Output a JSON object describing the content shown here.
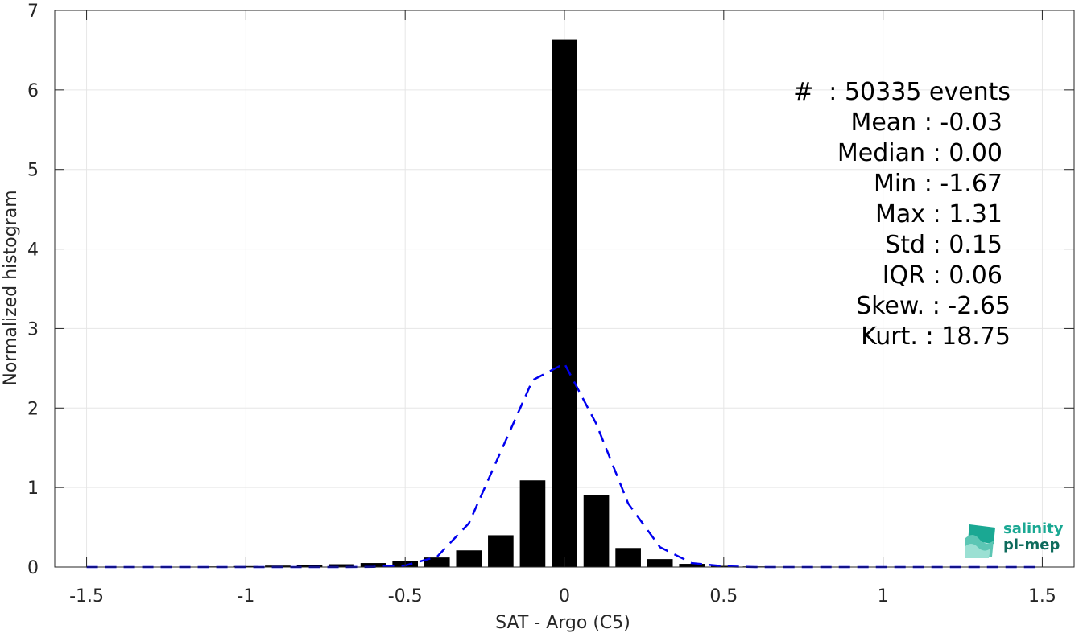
{
  "chart_data": {
    "type": "bar",
    "xlabel": "SAT - Argo (C5)",
    "ylabel": "Normalized histogram",
    "xlim": [
      -1.6,
      1.6
    ],
    "ylim": [
      0,
      7
    ],
    "xticks": [
      -1.5,
      -1,
      -0.5,
      0,
      0.5,
      1,
      1.5
    ],
    "xtick_labels": [
      "-1.5",
      "-1",
      "-0.5",
      "0",
      "0.5",
      "1",
      "1.5"
    ],
    "yticks": [
      0,
      1,
      2,
      3,
      4,
      5,
      6,
      7
    ],
    "ytick_labels": [
      "0",
      "1",
      "2",
      "3",
      "4",
      "5",
      "6",
      "7"
    ],
    "grid": true,
    "bars": {
      "x": [
        -1.5,
        -1.4,
        -1.3,
        -1.2,
        -1.1,
        -1.0,
        -0.9,
        -0.8,
        -0.7,
        -0.6,
        -0.5,
        -0.4,
        -0.3,
        -0.2,
        -0.1,
        0.0,
        0.1,
        0.2,
        0.3,
        0.4,
        0.5,
        0.6,
        0.7,
        0.8,
        0.9,
        1.0,
        1.1,
        1.2,
        1.3
      ],
      "values": [
        0.002,
        0.003,
        0.004,
        0.005,
        0.008,
        0.012,
        0.018,
        0.025,
        0.035,
        0.05,
        0.08,
        0.12,
        0.21,
        0.4,
        1.09,
        6.63,
        0.91,
        0.24,
        0.1,
        0.04,
        0.015,
        0.008,
        0.005,
        0.003,
        0.002,
        0.002,
        0.001,
        0.001,
        0.001
      ],
      "color": "#000000"
    },
    "series": [
      {
        "style": "dashed",
        "color": "#0000ee",
        "x": [
          -1.5,
          -1.4,
          -1.3,
          -1.2,
          -1.1,
          -1.0,
          -0.9,
          -0.8,
          -0.7,
          -0.6,
          -0.5,
          -0.4,
          -0.3,
          -0.2,
          -0.1,
          0.0,
          0.1,
          0.2,
          0.3,
          0.4,
          0.5,
          0.6,
          0.7,
          0.8,
          0.9,
          1.0,
          1.1,
          1.2,
          1.3,
          1.4,
          1.5
        ],
        "y": [
          0,
          0,
          0,
          0,
          0,
          0,
          0,
          0,
          0,
          0.002,
          0.02,
          0.13,
          0.55,
          1.45,
          2.35,
          2.56,
          1.8,
          0.8,
          0.25,
          0.05,
          0.01,
          0,
          0,
          0,
          0,
          0,
          0,
          0,
          0,
          0,
          0
        ]
      }
    ]
  },
  "stats": {
    "events": "#  : 50335 events",
    "mean": "Mean : -0.03",
    "median": "Median : 0.00",
    "min": "Min : -1.67",
    "max": "Max : 1.31",
    "std": "Std : 0.15",
    "iqr": "IQR : 0.06",
    "skew": "Skew. : -2.65",
    "kurt": "Kurt. : 18.75"
  },
  "logo": {
    "line1": "salinity",
    "line2": "pi-mep",
    "icon": "salinity-pimep-logo-icon",
    "color": "#1aa893"
  }
}
